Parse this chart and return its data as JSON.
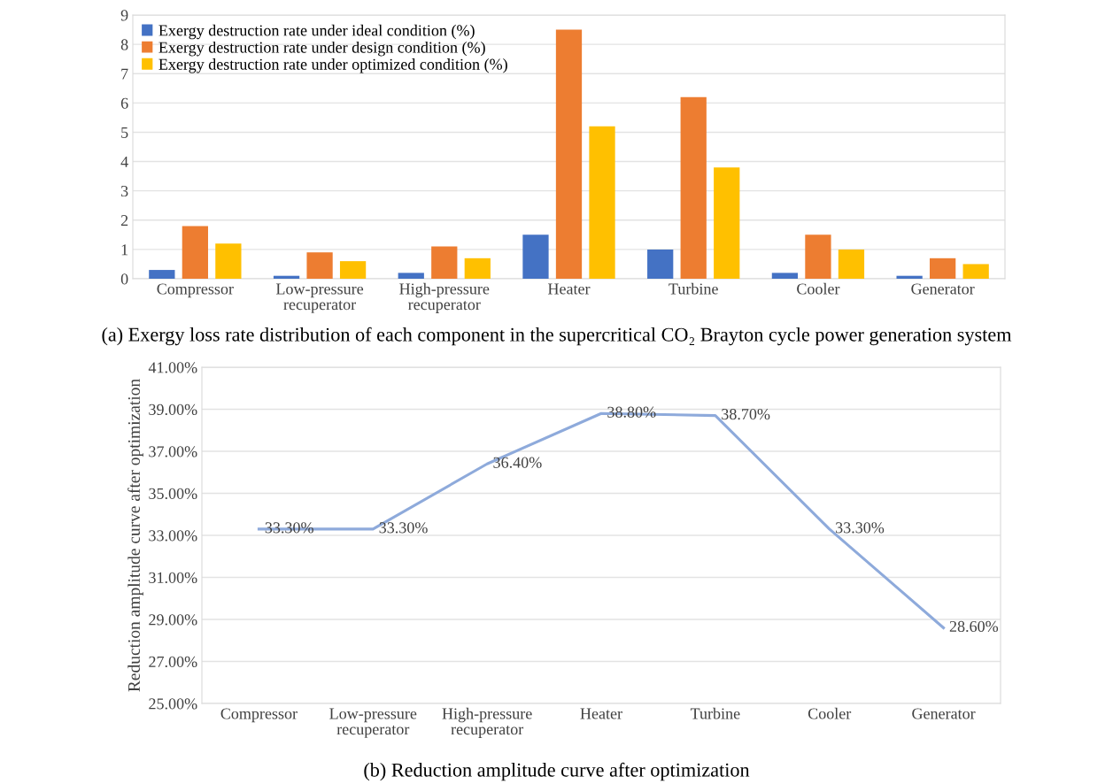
{
  "chart_data": [
    {
      "type": "bar",
      "categories": [
        "Compressor",
        "Low-pressure\nrecuperator",
        "High-pressure\nrecuperator",
        "Heater",
        "Turbine",
        "Cooler",
        "Generator"
      ],
      "series": [
        {
          "name": "Exergy destruction rate under ideal condition (%)",
          "color": "#4472c4",
          "values": [
            0.3,
            0.1,
            0.2,
            1.5,
            1.0,
            0.2,
            0.1
          ]
        },
        {
          "name": "Exergy destruction rate under design condition (%)",
          "color": "#ed7d31",
          "values": [
            1.8,
            0.9,
            1.1,
            8.5,
            6.2,
            1.5,
            0.7
          ]
        },
        {
          "name": "Exergy destruction rate under optimized condition (%)",
          "color": "#ffc000",
          "values": [
            1.2,
            0.6,
            0.7,
            5.2,
            3.8,
            1.0,
            0.5
          ]
        }
      ],
      "ylim": [
        0,
        9
      ],
      "yticks": [
        0,
        1,
        2,
        3,
        4,
        5,
        6,
        7,
        8,
        9
      ],
      "grid": "y",
      "legend": "top left",
      "annotations": [
        "(a) Exergy loss rate distribution of each component in the supercritical CO₂ Brayton cycle power generation system"
      ]
    },
    {
      "type": "line",
      "categories": [
        "Compressor",
        "Low-pressure\nrecuperator",
        "High-pressure\nrecuperator",
        "Heater",
        "Turbine",
        "Cooler",
        "Generator"
      ],
      "series": [
        {
          "color": "#8eaadb",
          "values": [
            33.3,
            33.3,
            36.4,
            38.8,
            38.7,
            33.3,
            28.6
          ],
          "value_labels": [
            "33.30%",
            "33.30%",
            "36.40%",
            "38.80%",
            "38.70%",
            "33.30%",
            "28.60%"
          ]
        }
      ],
      "ylabel": "Reduction amplitude curve after optimization",
      "ylim": [
        25,
        41
      ],
      "yticks": [
        {
          "value": 25,
          "label": "25.00%"
        },
        {
          "value": 27,
          "label": "27.00%"
        },
        {
          "value": 29,
          "label": "29.00%"
        },
        {
          "value": 31,
          "label": "31.00%"
        },
        {
          "value": 33,
          "label": "33.00%"
        },
        {
          "value": 35,
          "label": "35.00%"
        },
        {
          "value": 37,
          "label": "37.00%"
        },
        {
          "value": 39,
          "label": "39.00%"
        },
        {
          "value": 41,
          "label": "41.00%"
        }
      ],
      "grid": "y",
      "marker": "none",
      "line_style": "solid",
      "annotations": [
        "(b) Reduction amplitude curve after optimization"
      ]
    }
  ]
}
